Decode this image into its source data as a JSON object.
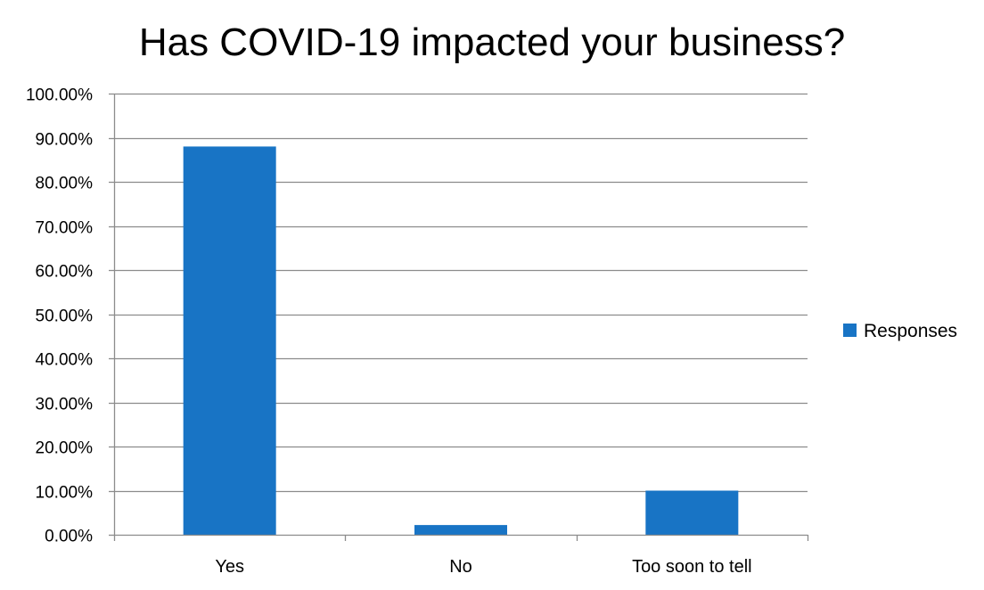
{
  "chart_data": {
    "type": "bar",
    "title": "Has COVID-19 impacted your business?",
    "categories": [
      "Yes",
      "No",
      "Too soon to tell"
    ],
    "series": [
      {
        "name": "Responses",
        "color": "#1874C5",
        "values": [
          0.88,
          0.022,
          0.1
        ]
      }
    ],
    "ylim": [
      0,
      1
    ],
    "y_ticks": [
      {
        "value": 0.0,
        "label": "0.00%"
      },
      {
        "value": 0.1,
        "label": "10.00%"
      },
      {
        "value": 0.2,
        "label": "20.00%"
      },
      {
        "value": 0.3,
        "label": "30.00%"
      },
      {
        "value": 0.4,
        "label": "40.00%"
      },
      {
        "value": 0.5,
        "label": "50.00%"
      },
      {
        "value": 0.6,
        "label": "60.00%"
      },
      {
        "value": 0.7,
        "label": "70.00%"
      },
      {
        "value": 0.8,
        "label": "80.00%"
      },
      {
        "value": 0.9,
        "label": "90.00%"
      },
      {
        "value": 1.0,
        "label": "100.00%"
      }
    ],
    "grid": true,
    "legend_position": "right"
  }
}
